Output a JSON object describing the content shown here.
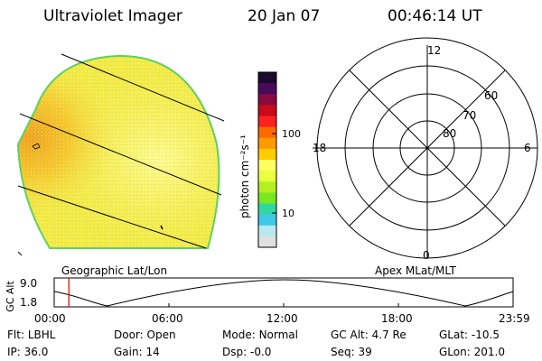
{
  "header": {
    "instrument": "Ultraviolet Imager",
    "date": "20 Jan 07",
    "time": "00:46:14 UT"
  },
  "earth_image": {
    "caption": "Geographic Lat/Lon"
  },
  "colorbar": {
    "unit_label": "photon cm⁻²s⁻¹",
    "ticks": [
      "100",
      "10"
    ],
    "colors": [
      "#1a0a2e",
      "#4a0a5a",
      "#8a0a40",
      "#c80a1a",
      "#ff2020",
      "#ff6a00",
      "#ff9a00",
      "#ffcc00",
      "#ffff60",
      "#e8ff40",
      "#b4f020",
      "#78e820",
      "#30d8a0",
      "#40c8e8",
      "#b8e8f0",
      "#e0e0e0"
    ]
  },
  "polar_plot": {
    "caption": "Apex MLat/MLT",
    "mlt_labels": {
      "top": "12",
      "left": "18",
      "right": "6",
      "bottom": "0"
    },
    "lat_labels": [
      "60",
      "70",
      "80"
    ]
  },
  "altitude_plot": {
    "y_label": "GC Alt",
    "y_ticks": [
      "9.0",
      "1.8"
    ],
    "x_ticks": [
      "00:00",
      "06:00",
      "12:00",
      "18:00",
      "23:59"
    ],
    "current_time_fraction": 0.032,
    "marker_color": "#e00000"
  },
  "status": {
    "row1": [
      {
        "label": "Flt:",
        "value": "LBHL"
      },
      {
        "label": "Door:",
        "value": "Open"
      },
      {
        "label": "Mode:",
        "value": "Normal"
      },
      {
        "label": "GC Alt:",
        "value": "4.7 Re"
      },
      {
        "label": "GLat:",
        "value": "-10.5"
      }
    ],
    "row2": [
      {
        "label": "IP:",
        "value": "36.0"
      },
      {
        "label": "Gain:",
        "value": "14"
      },
      {
        "label": "Dsp:",
        "value": "-0.0"
      },
      {
        "label": "Seq:",
        "value": "39"
      },
      {
        "label": "GLon:",
        "value": "201.0"
      }
    ]
  }
}
